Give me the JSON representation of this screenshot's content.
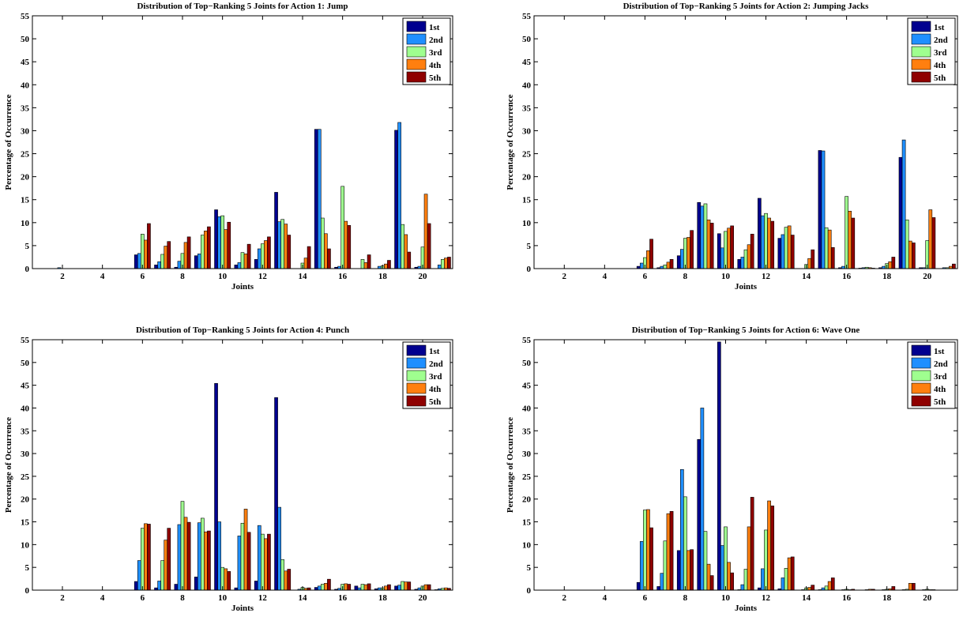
{
  "legend_labels": [
    "1st",
    "2nd",
    "3rd",
    "4th",
    "5th"
  ],
  "series_colors": [
    "#00008f",
    "#1f8fff",
    "#9fff8f",
    "#ff7f0f",
    "#8f0000"
  ],
  "chart_data": [
    {
      "type": "bar",
      "title": "Distribution of Top−Ranking 5 Joints for Action 1: Jump",
      "xlabel": "Joints",
      "ylabel": "Percentage of Occurrence",
      "ylim": [
        0,
        55
      ],
      "xlim": [
        0.5,
        21.5
      ],
      "yticks": [
        0,
        5,
        10,
        15,
        20,
        25,
        30,
        35,
        40,
        45,
        50,
        55
      ],
      "xticks": [
        2,
        4,
        6,
        8,
        10,
        12,
        14,
        16,
        18,
        20
      ],
      "legend_position": "top-right",
      "categories": [
        1,
        2,
        3,
        4,
        5,
        6,
        7,
        8,
        9,
        10,
        11,
        12,
        13,
        14,
        15,
        16,
        17,
        18,
        19,
        20,
        21
      ],
      "series": [
        {
          "name": "1st",
          "values": [
            0,
            0,
            0,
            0,
            0,
            3.0,
            0.8,
            0.3,
            2.8,
            12.8,
            0.8,
            2.0,
            16.6,
            0,
            30.3,
            0.3,
            0,
            0,
            30.1,
            0.3,
            0
          ]
        },
        {
          "name": "2nd",
          "values": [
            0,
            0.2,
            0,
            0,
            0,
            3.3,
            1.5,
            1.6,
            3.2,
            11.3,
            1.3,
            4.3,
            10.2,
            0,
            30.3,
            0.5,
            0,
            0.5,
            31.8,
            0.5,
            0.8
          ]
        },
        {
          "name": "3rd",
          "values": [
            0,
            0,
            0,
            0,
            0,
            7.5,
            3.1,
            3.3,
            7.3,
            11.5,
            3.5,
            5.4,
            10.7,
            1.2,
            11.0,
            17.9,
            2.0,
            0.6,
            9.6,
            4.7,
            2.0
          ]
        },
        {
          "name": "4th",
          "values": [
            0,
            0,
            0,
            0,
            0,
            6.2,
            4.9,
            5.7,
            8.2,
            8.5,
            3.2,
            6.1,
            9.7,
            2.3,
            7.6,
            10.3,
            1.3,
            1.0,
            7.4,
            16.2,
            2.3
          ]
        },
        {
          "name": "5th",
          "values": [
            0,
            0,
            0,
            0,
            0,
            9.8,
            5.9,
            6.9,
            9.1,
            10.1,
            5.3,
            6.9,
            7.3,
            4.8,
            4.3,
            9.4,
            3.0,
            1.8,
            3.6,
            9.8,
            2.5
          ]
        }
      ]
    },
    {
      "type": "bar",
      "title": "Distribution of Top−Ranking 5 Joints for Action 2: Jumping Jacks",
      "xlabel": "Joints",
      "ylabel": "Percentage of Occurrence",
      "ylim": [
        0,
        55
      ],
      "xlim": [
        0.5,
        21.5
      ],
      "yticks": [
        0,
        5,
        10,
        15,
        20,
        25,
        30,
        35,
        40,
        45,
        50,
        55
      ],
      "xticks": [
        2,
        4,
        6,
        8,
        10,
        12,
        14,
        16,
        18,
        20
      ],
      "legend_position": "top-right",
      "categories": [
        1,
        2,
        3,
        4,
        5,
        6,
        7,
        8,
        9,
        10,
        11,
        12,
        13,
        14,
        15,
        16,
        17,
        18,
        19,
        20,
        21
      ],
      "series": [
        {
          "name": "1st",
          "values": [
            0,
            0,
            0,
            0,
            0,
            0.5,
            0.2,
            2.8,
            14.4,
            7.6,
            2.0,
            15.3,
            6.6,
            0,
            25.7,
            0.2,
            0.1,
            0.2,
            24.2,
            0.2,
            0
          ]
        },
        {
          "name": "2nd",
          "values": [
            0,
            0,
            0,
            0,
            0,
            1.2,
            0.5,
            4.2,
            13.6,
            4.5,
            2.5,
            11.5,
            7.4,
            0,
            25.6,
            0.5,
            0.2,
            0.5,
            28.0,
            0.2,
            0.2
          ]
        },
        {
          "name": "3rd",
          "values": [
            0,
            0,
            0,
            0,
            0,
            2.4,
            0.8,
            6.6,
            14.1,
            8.1,
            4.1,
            12.0,
            9.0,
            0.9,
            8.9,
            15.7,
            0.3,
            1.1,
            10.6,
            6.1,
            0.2
          ]
        },
        {
          "name": "4th",
          "values": [
            0,
            0,
            0,
            0,
            0,
            3.9,
            1.4,
            6.8,
            10.6,
            8.8,
            5.2,
            11.0,
            9.3,
            2.2,
            8.4,
            12.5,
            0.2,
            1.5,
            6.0,
            12.8,
            0.5
          ]
        },
        {
          "name": "5th",
          "values": [
            0,
            0,
            0,
            0,
            0,
            6.4,
            2.0,
            8.3,
            9.9,
            9.3,
            7.5,
            10.3,
            7.3,
            4.1,
            4.6,
            11.0,
            0.1,
            2.5,
            5.6,
            11.1,
            1.0
          ]
        }
      ]
    },
    {
      "type": "bar",
      "title": "Distribution of Top−Ranking 5 Joints for Action 4: Punch",
      "xlabel": "Joints",
      "ylabel": "Percentage of Occurrence",
      "ylim": [
        0,
        55
      ],
      "xlim": [
        0.5,
        21.5
      ],
      "yticks": [
        0,
        5,
        10,
        15,
        20,
        25,
        30,
        35,
        40,
        45,
        50,
        55
      ],
      "xticks": [
        2,
        4,
        6,
        8,
        10,
        12,
        14,
        16,
        18,
        20
      ],
      "legend_position": "top-right",
      "categories": [
        1,
        2,
        3,
        4,
        5,
        6,
        7,
        8,
        9,
        10,
        11,
        12,
        13,
        14,
        15,
        16,
        17,
        18,
        19,
        20,
        21
      ],
      "series": [
        {
          "name": "1st",
          "values": [
            0,
            0,
            0,
            0,
            0,
            1.9,
            0.5,
            1.3,
            2.9,
            45.4,
            0.5,
            2.0,
            42.3,
            0,
            0.6,
            0.2,
            0.9,
            0.3,
            0.9,
            0.2,
            0.1
          ]
        },
        {
          "name": "2nd",
          "values": [
            0,
            0,
            0,
            0,
            0,
            6.5,
            2.0,
            14.4,
            14.8,
            15.0,
            11.9,
            14.2,
            18.2,
            0.2,
            0.9,
            0.4,
            0.5,
            0.5,
            1.1,
            0.5,
            0.3
          ]
        },
        {
          "name": "3rd",
          "values": [
            0,
            0,
            0,
            0,
            0,
            13.6,
            6.5,
            19.5,
            15.8,
            5.0,
            14.7,
            12.3,
            6.7,
            0.6,
            1.3,
            1.3,
            1.3,
            0.5,
            1.9,
            0.9,
            0.4
          ]
        },
        {
          "name": "4th",
          "values": [
            0,
            0,
            0,
            0,
            0,
            14.6,
            11.0,
            16.0,
            12.8,
            4.7,
            17.8,
            11.3,
            4.2,
            0.4,
            1.5,
            1.4,
            1.2,
            0.9,
            1.8,
            1.2,
            0.5
          ]
        },
        {
          "name": "5th",
          "values": [
            0,
            0,
            0,
            0,
            0,
            14.5,
            13.6,
            14.9,
            13.0,
            4.1,
            12.7,
            12.3,
            4.6,
            0.5,
            2.4,
            1.3,
            1.4,
            1.2,
            1.8,
            1.2,
            0.4
          ]
        }
      ]
    },
    {
      "type": "bar",
      "title": "Distribution of Top−Ranking 5 Joints for Action 6: Wave One",
      "xlabel": "Joints",
      "ylabel": "Percentage of Occurrence",
      "ylim": [
        0,
        55
      ],
      "xlim": [
        0.5,
        21.5
      ],
      "yticks": [
        0,
        5,
        10,
        15,
        20,
        25,
        30,
        35,
        40,
        45,
        50,
        55
      ],
      "xticks": [
        2,
        4,
        6,
        8,
        10,
        12,
        14,
        16,
        18,
        20
      ],
      "legend_position": "top-right",
      "categories": [
        1,
        2,
        3,
        4,
        5,
        6,
        7,
        8,
        9,
        10,
        11,
        12,
        13,
        14,
        15,
        16,
        17,
        18,
        19,
        20,
        21
      ],
      "series": [
        {
          "name": "1st",
          "values": [
            0,
            0,
            0,
            0,
            0,
            1.7,
            0.8,
            8.7,
            33.1,
            54.5,
            0.1,
            0.5,
            0.3,
            0,
            0.1,
            0,
            0,
            0,
            0,
            0,
            0
          ]
        },
        {
          "name": "2nd",
          "values": [
            0,
            0,
            0,
            0,
            0,
            10.7,
            3.7,
            26.5,
            40.0,
            9.8,
            1.2,
            4.7,
            2.7,
            0.1,
            0.5,
            0.1,
            0,
            0.1,
            0.1,
            0.1,
            0
          ]
        },
        {
          "name": "3rd",
          "values": [
            0,
            0,
            0,
            0,
            0,
            17.6,
            10.8,
            20.5,
            12.9,
            13.9,
            4.6,
            13.2,
            4.8,
            0.5,
            0.9,
            0.2,
            0.1,
            0.2,
            0.2,
            0.2,
            0
          ]
        },
        {
          "name": "4th",
          "values": [
            0,
            0,
            0,
            0,
            0,
            17.7,
            16.8,
            8.7,
            5.7,
            6.1,
            13.9,
            19.6,
            7.1,
            0.6,
            1.9,
            0.1,
            0.2,
            0.3,
            1.5,
            0.1,
            0
          ]
        },
        {
          "name": "5th",
          "values": [
            0,
            0,
            0,
            0,
            0,
            13.7,
            17.3,
            8.9,
            3.2,
            3.8,
            20.4,
            18.5,
            7.3,
            1.1,
            2.7,
            0.2,
            0.2,
            0.8,
            1.5,
            0.1,
            0
          ]
        }
      ]
    }
  ]
}
